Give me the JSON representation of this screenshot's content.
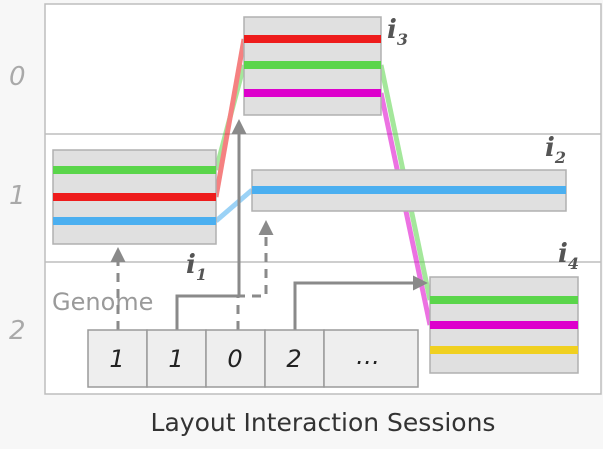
{
  "rows": [
    "0",
    "1",
    "2"
  ],
  "interactions": [
    {
      "base": "i",
      "sub": "1"
    },
    {
      "base": "i",
      "sub": "2"
    },
    {
      "base": "i",
      "sub": "3"
    },
    {
      "base": "i",
      "sub": "4"
    }
  ],
  "genome_label": "Genome",
  "genome_values": [
    "1",
    "1",
    "0",
    "2",
    "…"
  ],
  "caption": "Layout Interaction Sessions",
  "colors": {
    "green": "#5ad54a",
    "red": "#ee1c1c",
    "blue": "#4baff0",
    "magenta": "#dd00cc",
    "yellow": "#f0d020",
    "arrow": "#8a8a8a",
    "block_fill": "#e0e0e0"
  }
}
